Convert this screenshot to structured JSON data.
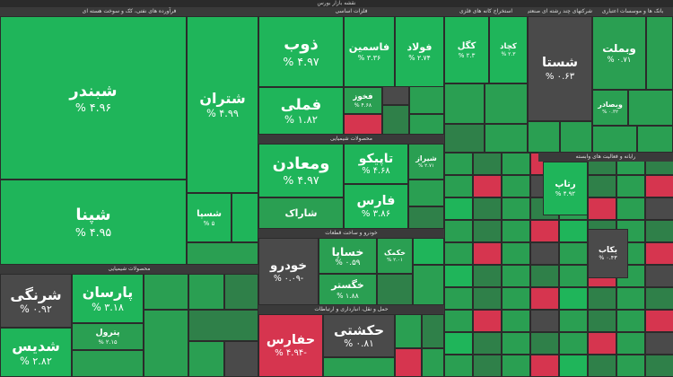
{
  "header": {
    "title": "نقشه بازار بورس"
  },
  "sectors": [
    {
      "name": "فرآورده های نفتی، کک و سوخت هسته ای",
      "tiles": [
        {
          "symbol": "شبندر",
          "change": "۴.۹۶ %"
        },
        {
          "symbol": "شپنا",
          "change": "۴.۹۵ %"
        },
        {
          "symbol": "شتران",
          "change": "۴.۹۹ %"
        },
        {
          "symbol": "شسپا",
          "change": "۵ %"
        }
      ]
    },
    {
      "name": "فلزات اساسی",
      "tiles": [
        {
          "symbol": "ذوب",
          "change": "۴.۹۷ %"
        },
        {
          "symbol": "فاسمین",
          "change": "۳.۳۶ %"
        },
        {
          "symbol": "فولاد",
          "change": "۲.۷۴ %"
        },
        {
          "symbol": "فملی",
          "change": "۱.۸۲ %"
        },
        {
          "symbol": "فخوز",
          "change": "۴.۶۸ %"
        }
      ]
    },
    {
      "name": "محصولات شیمیایی",
      "tiles": [
        {
          "symbol": "ومعادن",
          "change": "۴.۹۷ %"
        },
        {
          "symbol": "تاپیکو",
          "change": "۴.۶۸ %"
        },
        {
          "symbol": "شیراز",
          "change": "۲.۷۱ %"
        },
        {
          "symbol": "فارس",
          "change": "۳.۸۶ %"
        },
        {
          "symbol": "شاراک"
        }
      ]
    },
    {
      "name": "خودرو و ساخت قطعات",
      "tiles": [
        {
          "symbol": "خودرو",
          "change": "-۰.۰۹ %"
        },
        {
          "symbol": "خساپا",
          "change": "۰.۵۹ %"
        },
        {
          "symbol": "خگستر",
          "change": "۱.۸۸ %"
        },
        {
          "symbol": "خکمک",
          "change": "۲.۰۱ %"
        }
      ]
    },
    {
      "name": "حمل و نقل، انبارداری و ارتباطات",
      "tiles": [
        {
          "symbol": "حفارس",
          "change": "-۴.۹۴ %"
        },
        {
          "symbol": "حکشتی",
          "change": "۰.۸۱ %"
        }
      ]
    },
    {
      "name": "محصولات شیمیایی",
      "tiles": [
        {
          "symbol": "شرنگی",
          "change": "۰.۹۲ %"
        },
        {
          "symbol": "شدیس",
          "change": "۲.۸۲ %"
        },
        {
          "symbol": "پارسان",
          "change": "۳.۱۸ %"
        },
        {
          "symbol": "پترول",
          "change": "۲.۱۵ %"
        }
      ]
    },
    {
      "name": "استخراج کانه های فلزی",
      "tiles": [
        {
          "symbol": "کگل",
          "change": "۲.۳ %"
        },
        {
          "symbol": "کچاد",
          "change": "۲.۳ %"
        }
      ]
    },
    {
      "name": "شرکتهای چند رشته ای صنعتی",
      "tiles": [
        {
          "symbol": "شستا",
          "change": "۰.۶۳ %"
        }
      ]
    },
    {
      "name": "بانک ها و موسسات اعتباری",
      "tiles": [
        {
          "symbol": "وبملت",
          "change": "۰.۷۱ %"
        },
        {
          "symbol": "وبصادر",
          "change": "۰.۳۲ %"
        }
      ]
    },
    {
      "name": "رایانه و فعالیت های وابسته",
      "tiles": [
        {
          "symbol": "رتاپ",
          "change": "۴.۹۲ %"
        },
        {
          "symbol": "بکاب",
          "change": "۰.۴۳ %"
        }
      ]
    }
  ]
}
